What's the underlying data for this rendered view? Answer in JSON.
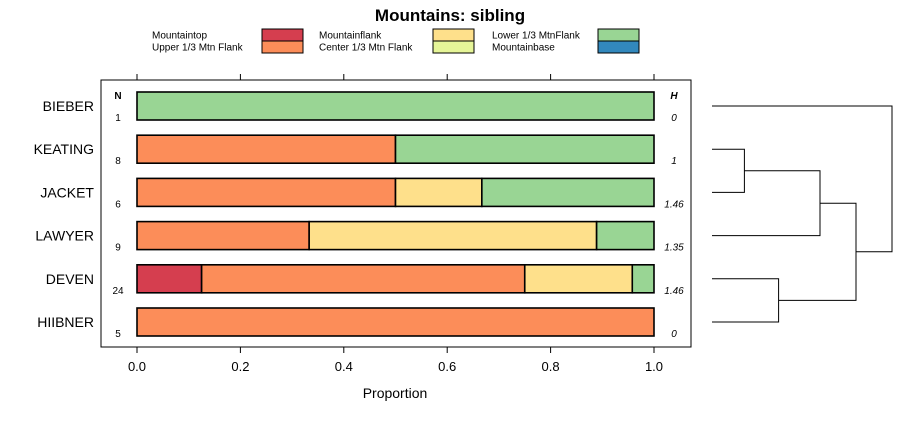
{
  "chart_data": {
    "type": "bar",
    "orientation": "horizontal",
    "stacked": true,
    "title": "Mountains: sibling",
    "xlabel": "Proportion",
    "ylabel": "",
    "xlim": [
      0,
      1
    ],
    "x_ticks": [
      "0.0",
      "0.2",
      "0.4",
      "0.6",
      "0.8",
      "1.0"
    ],
    "x_tick_values": [
      0,
      0.2,
      0.4,
      0.6,
      0.8,
      1.0
    ],
    "n_header": "N",
    "h_header": "H",
    "legend_position": "top",
    "legend": [
      {
        "label": "Mountaintop",
        "color": "#d53e4f"
      },
      {
        "label": "Upper 1/3 Mtn Flank",
        "color": "#fc8d59"
      },
      {
        "label": "Mountainflank",
        "color": "#fee08b"
      },
      {
        "label": "Center 1/3 Mtn Flank",
        "color": "#e6f598"
      },
      {
        "label": "Lower 1/3 MtnFlank",
        "color": "#99d594"
      },
      {
        "label": "Mountainbase",
        "color": "#3288bd"
      }
    ],
    "categories": [
      "BIEBER",
      "KEATING",
      "JACKET",
      "LAWYER",
      "DEVEN",
      "HIIBNER"
    ],
    "n": [
      "1",
      "8",
      "6",
      "9",
      "24",
      "5"
    ],
    "h": [
      "0",
      "1",
      "1.46",
      "1.35",
      "1.46",
      "0"
    ],
    "series": [
      {
        "name": "Mountaintop",
        "values": [
          0,
          0,
          0,
          0,
          0.125,
          0
        ]
      },
      {
        "name": "Upper 1/3 Mtn Flank",
        "values": [
          0,
          0.5,
          0.5,
          0.333,
          0.625,
          1
        ]
      },
      {
        "name": "Mountainflank",
        "values": [
          0,
          0,
          0.167,
          0.556,
          0.208,
          0
        ]
      },
      {
        "name": "Center 1/3 Mtn Flank",
        "values": [
          0,
          0,
          0,
          0,
          0,
          0
        ]
      },
      {
        "name": "Lower 1/3 MtnFlank",
        "values": [
          1,
          0.5,
          0.333,
          0.111,
          0.042,
          0
        ]
      },
      {
        "name": "Mountainbase",
        "values": [
          0,
          0,
          0,
          0,
          0,
          0
        ]
      }
    ],
    "dendrogram": {
      "leaf_order": [
        "BIEBER",
        "KEATING",
        "JACKET",
        "LAWYER",
        "DEVEN",
        "HIIBNER"
      ],
      "merges": [
        {
          "left": "KEATING",
          "right": "JACKET",
          "height": 0.18
        },
        {
          "left": "cluster:KEATING+JACKET",
          "right": "LAWYER",
          "height": 0.6
        },
        {
          "left": "DEVEN",
          "right": "HIIBNER",
          "height": 0.37
        },
        {
          "left": "cluster:KEATING+JACKET+LAWYER",
          "right": "cluster:DEVEN+HIIBNER",
          "height": 0.8
        },
        {
          "left": "BIEBER",
          "right": "cluster:all-others",
          "height": 1.0
        }
      ]
    }
  }
}
